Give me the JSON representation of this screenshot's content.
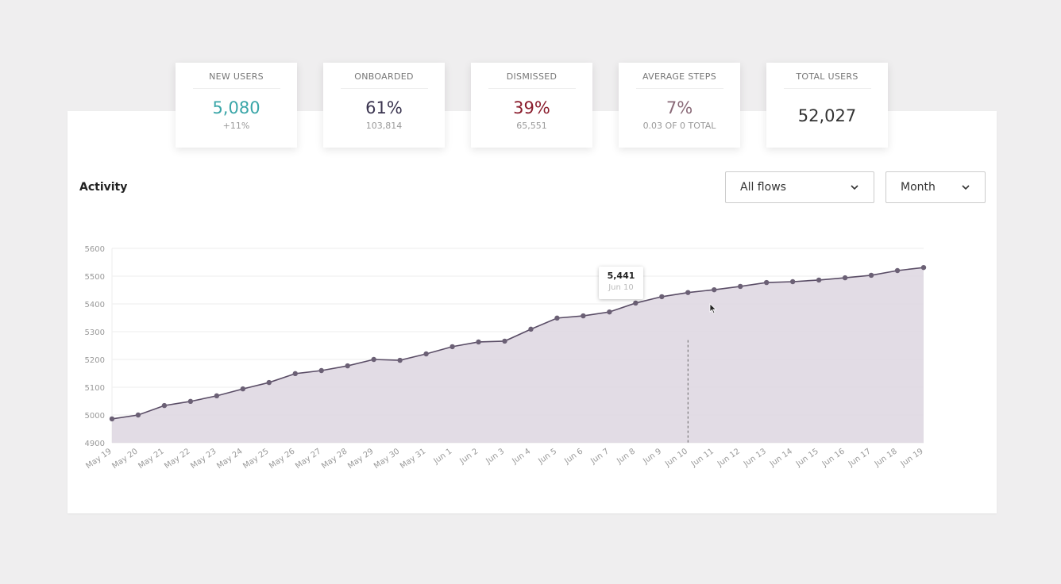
{
  "stats": [
    {
      "label": "NEW USERS",
      "value": "5,080",
      "sub": "+11%",
      "color": "#3aa6a8"
    },
    {
      "label": "ONBOARDED",
      "value": "61%",
      "sub": "103,814",
      "color": "#3b3550"
    },
    {
      "label": "DISMISSED",
      "value": "39%",
      "sub": "65,551",
      "color": "#8b1e2e"
    },
    {
      "label": "AVERAGE STEPS",
      "value": "7%",
      "sub": "0.03 OF 0 TOTAL",
      "color": "#8a6a78"
    },
    {
      "label": "TOTAL USERS",
      "value": "52,027",
      "color": "#333333"
    }
  ],
  "activity": {
    "title": "Activity",
    "flow_select": "All flows",
    "period_select": "Month"
  },
  "tooltip": {
    "value": "5,441",
    "date": "Jun 10"
  },
  "chart_data": {
    "type": "area",
    "title": "Activity",
    "ylim": [
      4900,
      5600
    ],
    "yticks": [
      4900,
      5000,
      5100,
      5200,
      5300,
      5400,
      5500,
      5600
    ],
    "grid": true,
    "categories": [
      "May 19",
      "May 20",
      "May 21",
      "May 22",
      "May 23",
      "May 24",
      "May 25",
      "May 26",
      "May 27",
      "May 28",
      "May 29",
      "May 30",
      "May 31",
      "Jun 1",
      "Jun 2",
      "Jun 3",
      "Jun 4",
      "Jun 5",
      "Jun 6",
      "Jun 7",
      "Jun 8",
      "Jun 9",
      "Jun 10",
      "Jun 11",
      "Jun 12",
      "Jun 13",
      "Jun 14",
      "Jun 15",
      "Jun 16",
      "Jun 17",
      "Jun 18",
      "Jun 19"
    ],
    "values": [
      4986,
      5000,
      5034,
      5049,
      5069,
      5094,
      5117,
      5149,
      5160,
      5177,
      5200,
      5197,
      5220,
      5246,
      5263,
      5266,
      5309,
      5349,
      5357,
      5371,
      5403,
      5426,
      5441,
      5451,
      5463,
      5477,
      5480,
      5486,
      5494,
      5503,
      5520,
      5531
    ],
    "highlight_index": 22,
    "line_color": "#5a4d66",
    "fill_color": "#ddd6e0"
  }
}
